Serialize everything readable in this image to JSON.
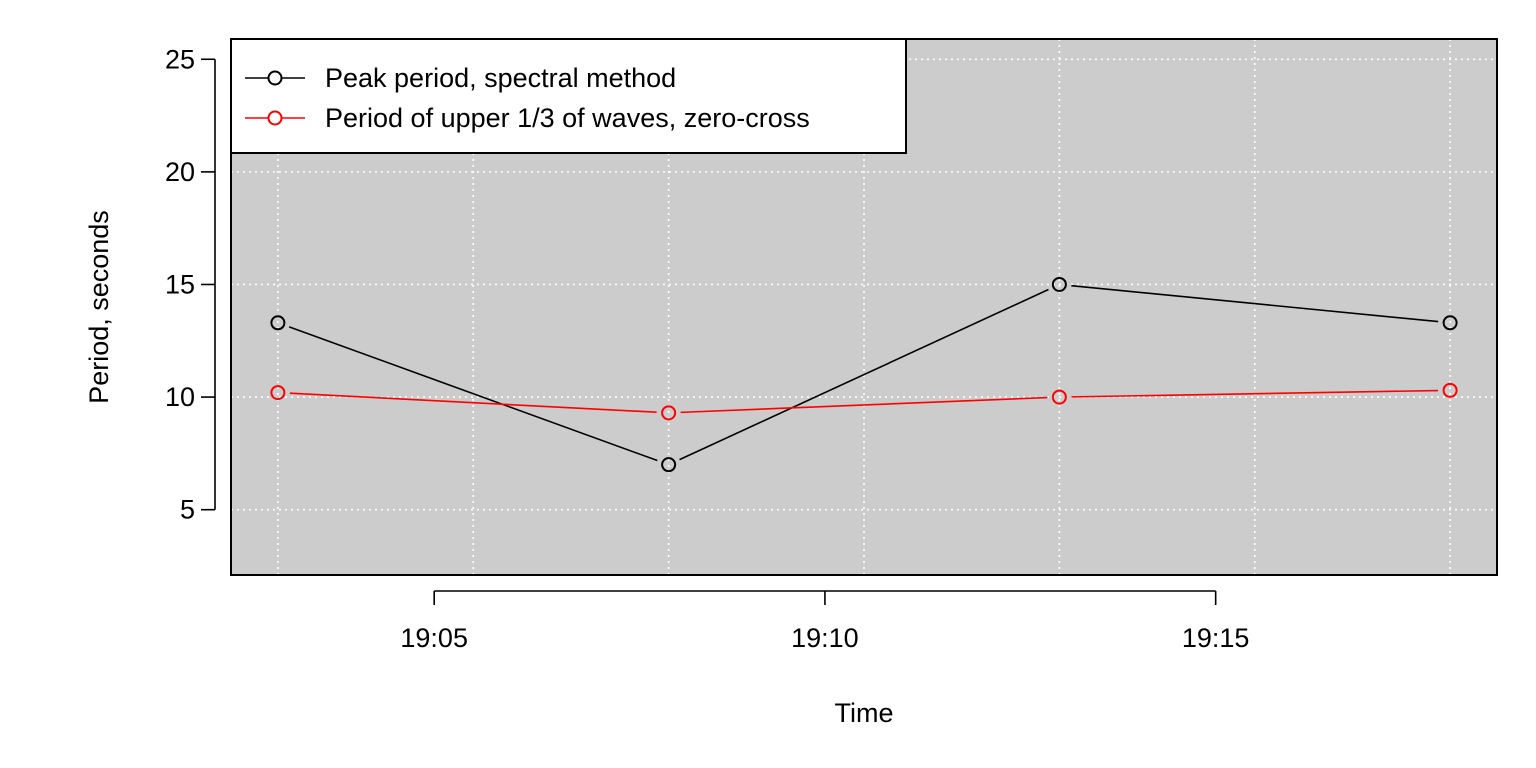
{
  "chart_data": {
    "type": "line",
    "xlabel": "Time",
    "ylabel": "Period, seconds",
    "x_ticks": [
      "19:05",
      "19:10",
      "19:15"
    ],
    "y_ticks": [
      5,
      10,
      15,
      20,
      25
    ],
    "ylim": [
      2.1,
      25.9
    ],
    "xlim": [
      "19:02:24",
      "19:18:36"
    ],
    "x": [
      "19:03",
      "19:08",
      "19:13",
      "19:18"
    ],
    "series": [
      {
        "name": "Peak period, spectral method",
        "color": "#000000",
        "values": [
          13.3,
          7.0,
          15.0,
          13.3
        ]
      },
      {
        "name": "Period of upper 1/3 of waves, zero-cross",
        "color": "#ff0000",
        "values": [
          10.2,
          9.3,
          10.0,
          10.3
        ]
      }
    ],
    "grid": true,
    "grid_style": "dotted white",
    "panel_background": "#cccccc",
    "legend_position": "top-left"
  }
}
